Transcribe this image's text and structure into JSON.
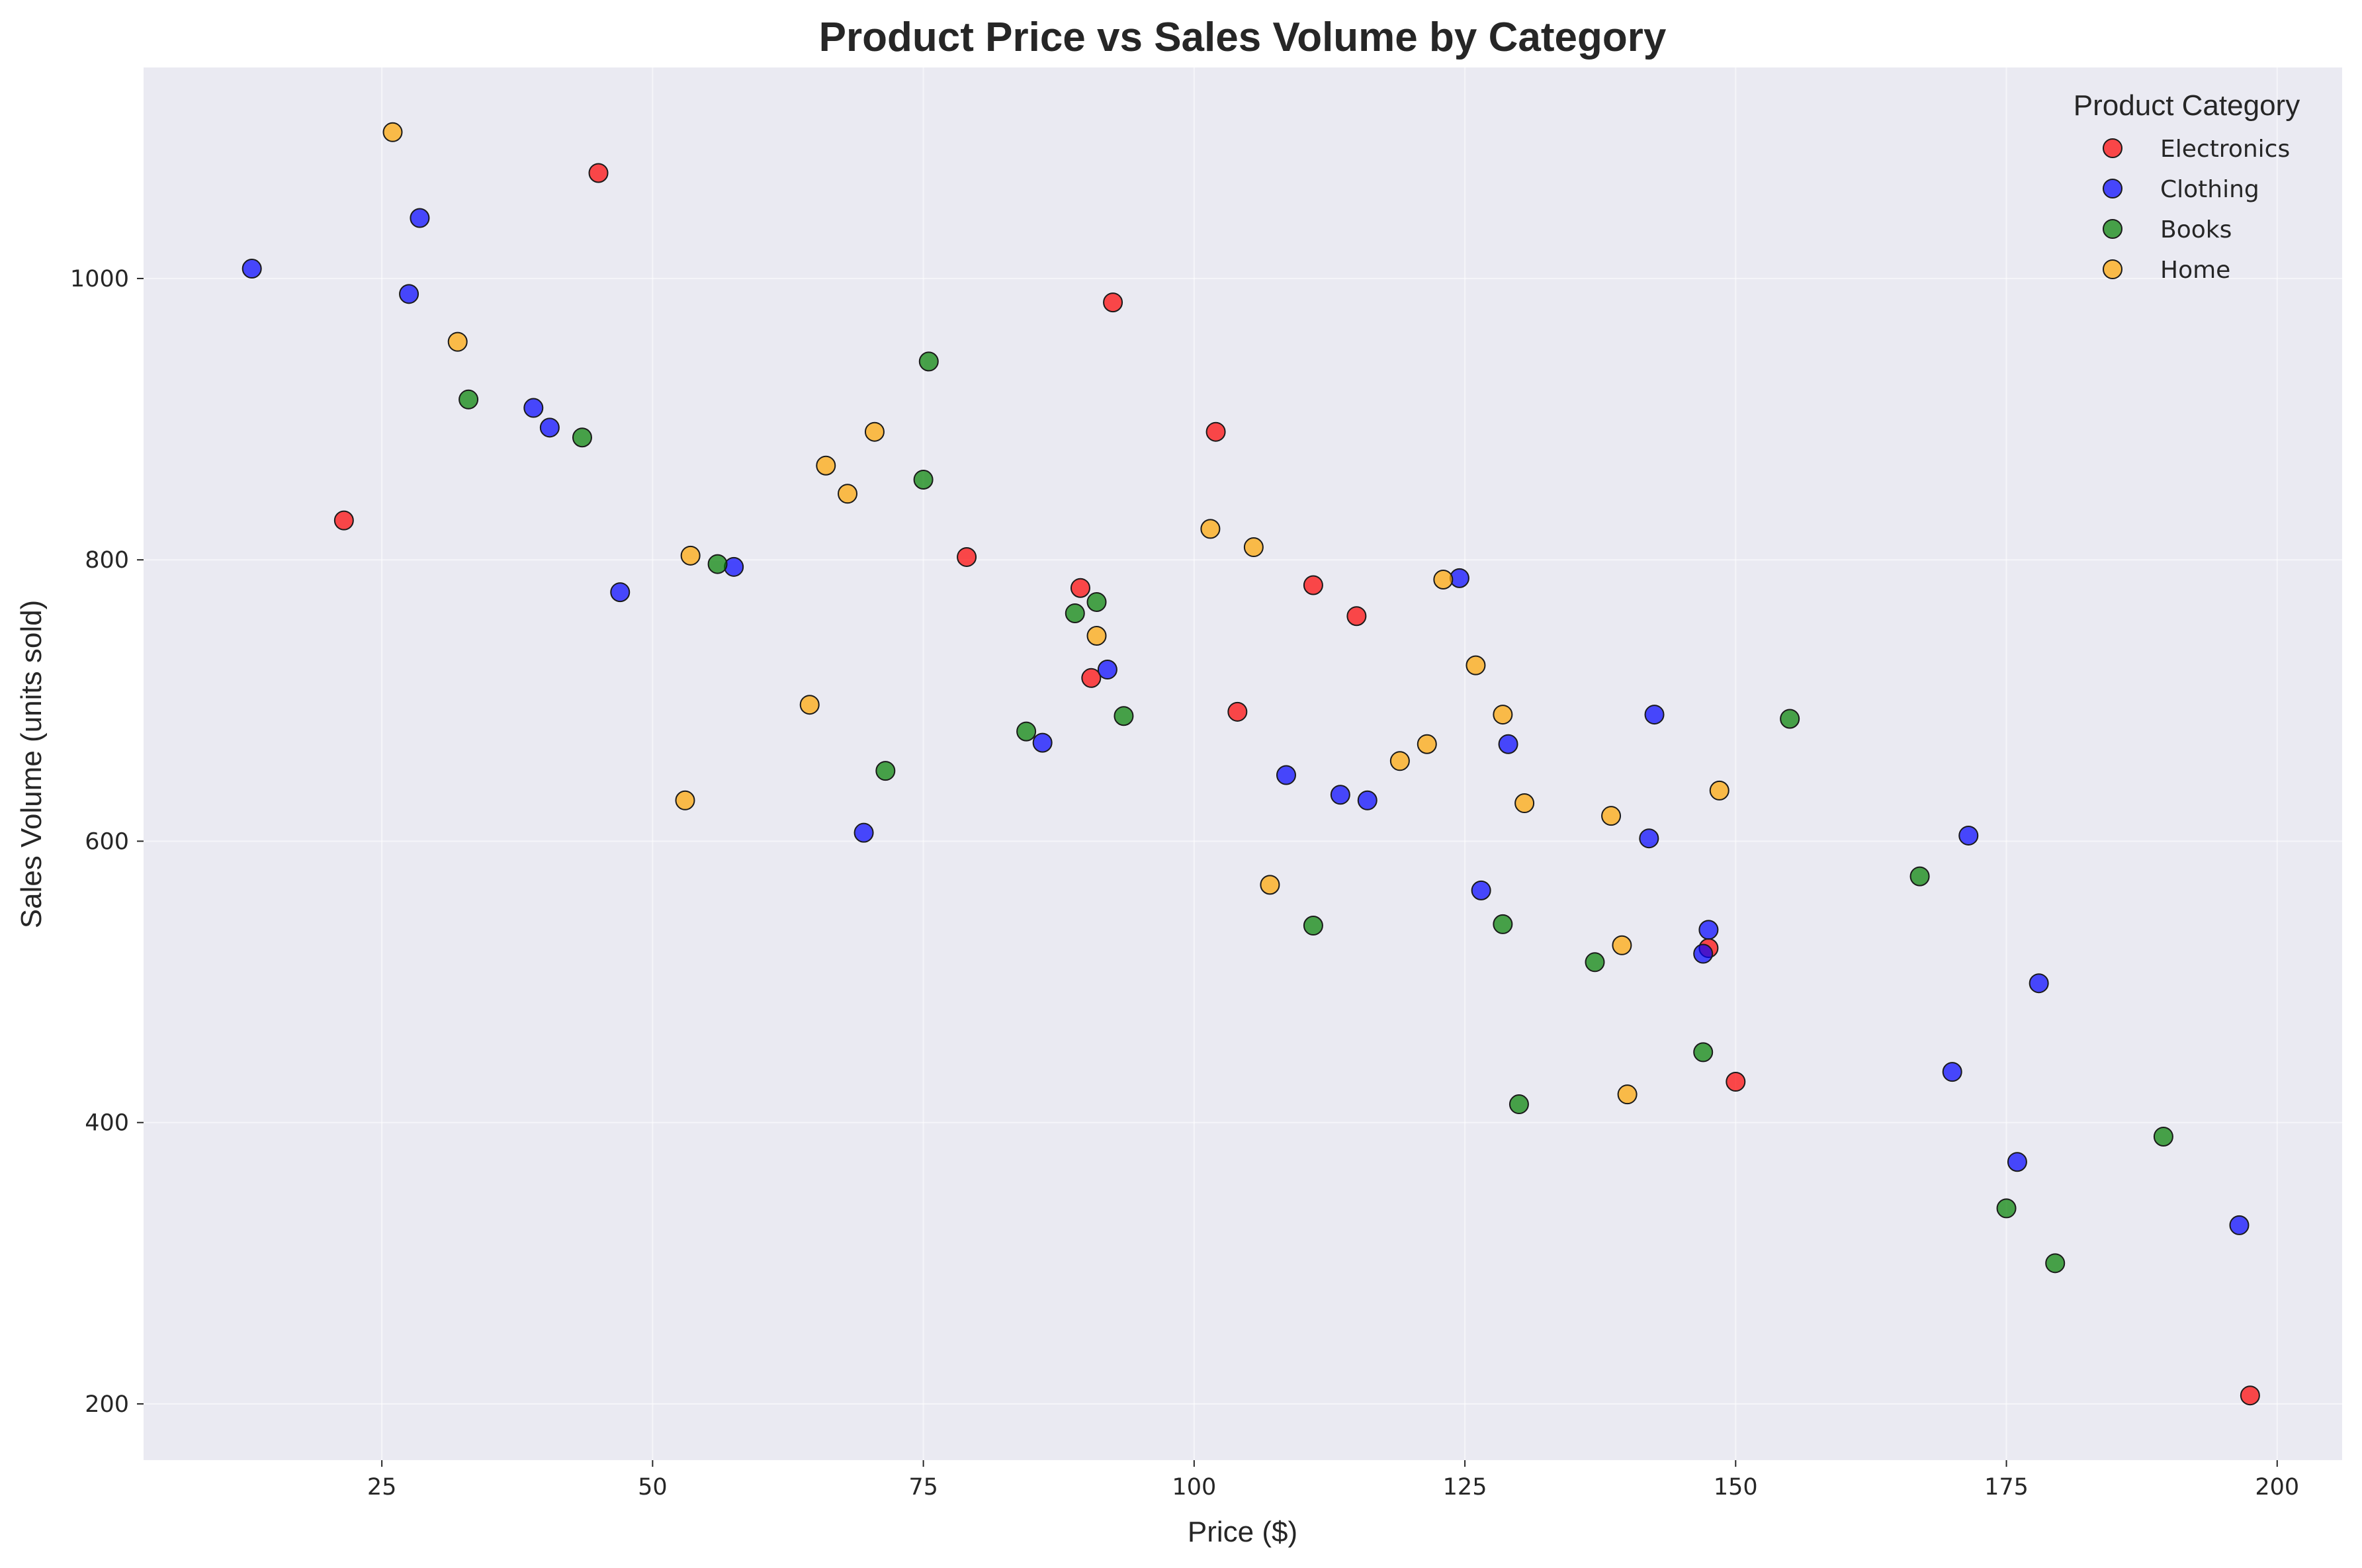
{
  "chart_data": {
    "type": "scatter",
    "title": "Product Price vs Sales Volume by Category",
    "xlabel": "Price ($)",
    "ylabel": "Sales Volume (units sold)",
    "xlim": [
      3,
      206
    ],
    "ylim": [
      160,
      1150
    ],
    "xticks": [
      25,
      50,
      75,
      100,
      125,
      150,
      175,
      200
    ],
    "yticks": [
      200,
      400,
      600,
      800,
      1000
    ],
    "grid": true,
    "background": "#eaeaf2",
    "legend": {
      "title": "Product Category",
      "placement": "top-right"
    },
    "series": [
      {
        "name": "Electronics",
        "color": "#ff0000",
        "points": [
          [
            21.5,
            828
          ],
          [
            45,
            1075
          ],
          [
            79,
            802
          ],
          [
            89.5,
            780
          ],
          [
            90.5,
            716
          ],
          [
            92.5,
            983
          ],
          [
            102,
            891
          ],
          [
            104,
            692
          ],
          [
            111,
            782
          ],
          [
            115,
            760
          ],
          [
            147.5,
            524
          ],
          [
            150,
            429
          ],
          [
            197.5,
            206
          ]
        ]
      },
      {
        "name": "Clothing",
        "color": "#0000ff",
        "points": [
          [
            13,
            1007
          ],
          [
            27.5,
            989
          ],
          [
            28.5,
            1043
          ],
          [
            39,
            908
          ],
          [
            40.5,
            894
          ],
          [
            47,
            777
          ],
          [
            57.5,
            795
          ],
          [
            69.5,
            606
          ],
          [
            86,
            670
          ],
          [
            92,
            722
          ],
          [
            108.5,
            647
          ],
          [
            113.5,
            633
          ],
          [
            116,
            629
          ],
          [
            124.5,
            787
          ],
          [
            126.5,
            565
          ],
          [
            129,
            669
          ],
          [
            142,
            602
          ],
          [
            142.5,
            690
          ],
          [
            147,
            520
          ],
          [
            147.5,
            537
          ],
          [
            170,
            436
          ],
          [
            171.5,
            604
          ],
          [
            176,
            372
          ],
          [
            178,
            499
          ],
          [
            196.5,
            327
          ]
        ]
      },
      {
        "name": "Books",
        "color": "#008000",
        "points": [
          [
            33,
            914
          ],
          [
            43.5,
            887
          ],
          [
            56,
            797
          ],
          [
            71.5,
            650
          ],
          [
            75,
            857
          ],
          [
            75.5,
            941
          ],
          [
            84.5,
            678
          ],
          [
            89,
            762
          ],
          [
            91,
            770
          ],
          [
            93.5,
            689
          ],
          [
            111,
            540
          ],
          [
            128.5,
            541
          ],
          [
            130,
            413
          ],
          [
            137,
            514
          ],
          [
            147,
            450
          ],
          [
            155,
            687
          ],
          [
            167,
            575
          ],
          [
            175,
            339
          ],
          [
            179.5,
            300
          ],
          [
            189.5,
            390
          ]
        ]
      },
      {
        "name": "Home",
        "color": "#ffa500",
        "points": [
          [
            26,
            1104
          ],
          [
            32,
            955
          ],
          [
            53,
            629
          ],
          [
            53.5,
            803
          ],
          [
            64.5,
            697
          ],
          [
            66,
            867
          ],
          [
            68,
            847
          ],
          [
            70.5,
            891
          ],
          [
            91,
            746
          ],
          [
            101.5,
            822
          ],
          [
            105.5,
            809
          ],
          [
            107,
            569
          ],
          [
            119,
            657
          ],
          [
            121.5,
            669
          ],
          [
            123,
            786
          ],
          [
            126,
            725
          ],
          [
            128.5,
            690
          ],
          [
            130.5,
            627
          ],
          [
            138.5,
            618
          ],
          [
            139.5,
            526
          ],
          [
            140,
            420
          ],
          [
            148.5,
            636
          ]
        ]
      }
    ]
  }
}
